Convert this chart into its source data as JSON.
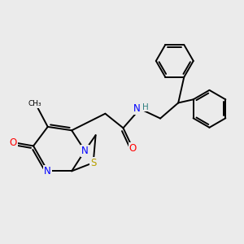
{
  "background_color": "#ebebeb",
  "bond_color": "#000000",
  "bond_width": 1.4,
  "atom_colors": {
    "N": "#0000ff",
    "O": "#ff0000",
    "S": "#b8a000",
    "H": "#2f8080",
    "C": "#000000"
  },
  "figsize": [
    3.0,
    3.0
  ],
  "dpi": 100
}
